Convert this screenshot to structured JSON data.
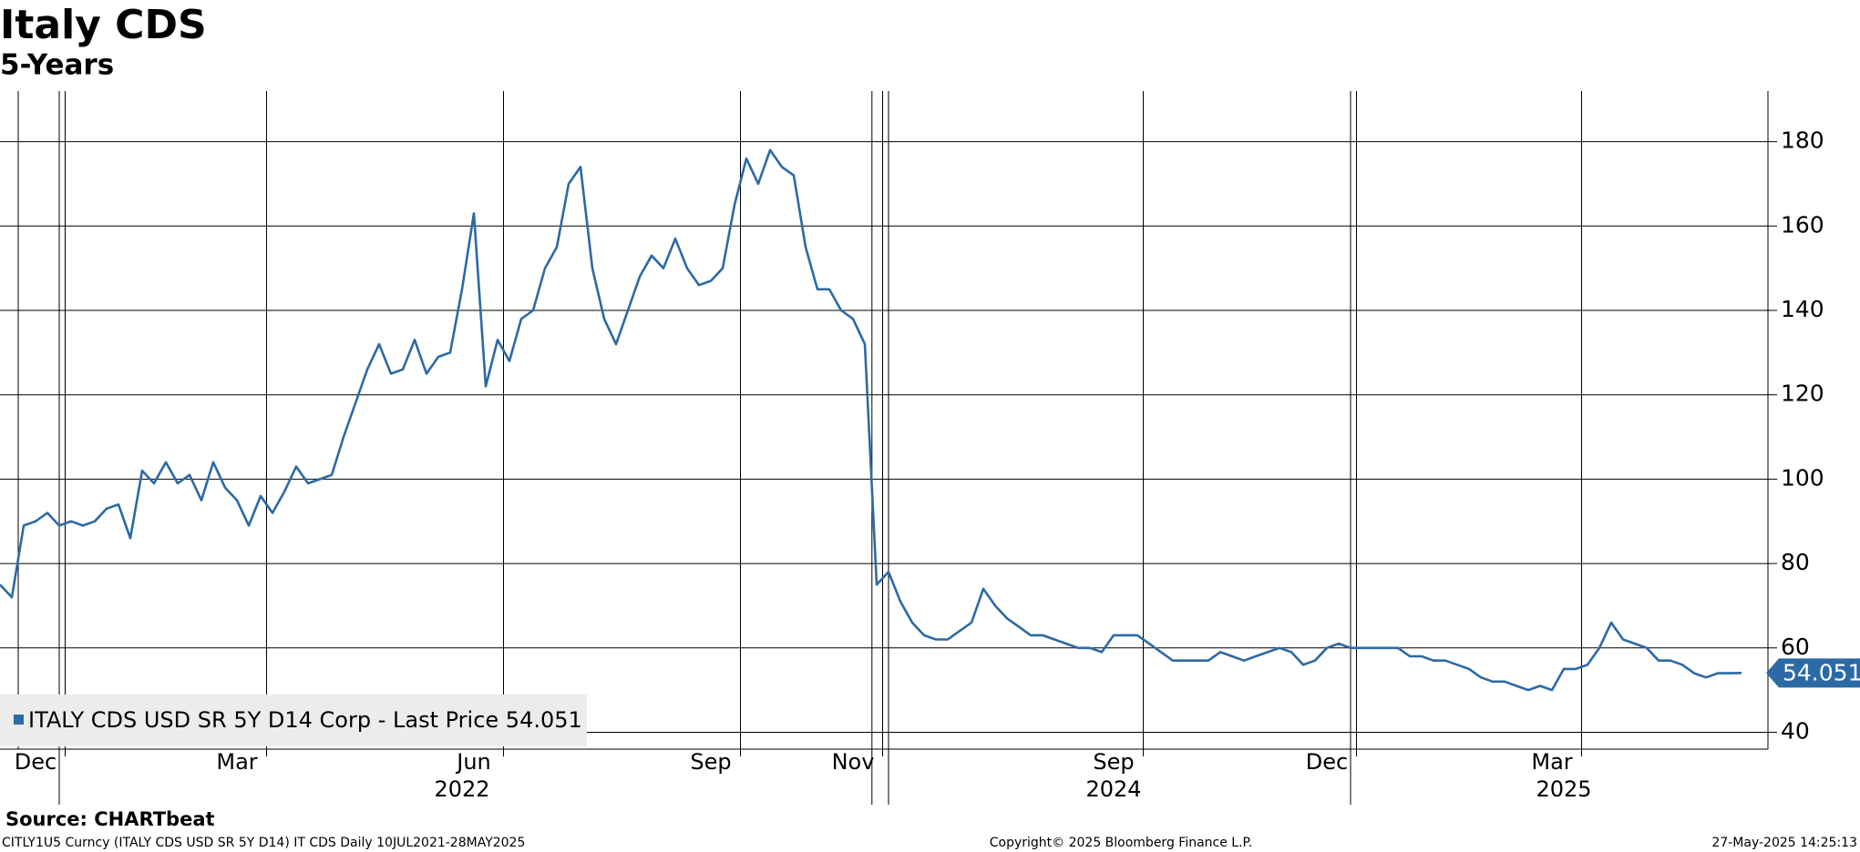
{
  "chart_data": {
    "type": "line",
    "title": "Italy CDS",
    "subtitle": "5-Years",
    "categories": [
      null,
      null,
      null,
      "Dec",
      null,
      null,
      null,
      null,
      null,
      null,
      null,
      null,
      null,
      null,
      null,
      null,
      null,
      null,
      null,
      null,
      "Mar",
      null,
      null,
      null,
      null,
      null,
      null,
      null,
      null,
      null,
      null,
      null,
      null,
      null,
      null,
      null,
      null,
      null,
      null,
      null,
      "Jun",
      null,
      null,
      null,
      null,
      null,
      null,
      null,
      null,
      null,
      null,
      null,
      null,
      null,
      null,
      null,
      null,
      null,
      null,
      null,
      "Sep",
      null,
      null,
      null,
      null,
      null,
      null,
      null,
      null,
      null,
      null,
      null,
      "Nov",
      null,
      null,
      null,
      null,
      null,
      null,
      null,
      null,
      null,
      null,
      null,
      null,
      null,
      null,
      null,
      null,
      null,
      null,
      null,
      null,
      null,
      "Sep",
      null,
      null,
      null,
      null,
      null,
      null,
      null,
      null,
      null,
      null,
      null,
      null,
      null,
      null,
      null,
      null,
      null,
      "Dec",
      null,
      null,
      null,
      null,
      null,
      null,
      null,
      null,
      null,
      null,
      null,
      null,
      null,
      null,
      null,
      null,
      null,
      null,
      "Mar",
      null,
      null,
      null,
      null,
      null,
      null,
      null,
      null,
      null,
      null,
      null,
      null,
      null,
      null,
      null,
      null
    ],
    "year_labels": [
      null,
      null,
      null,
      null,
      null,
      null,
      null,
      null,
      null,
      null,
      null,
      null,
      null,
      null,
      null,
      null,
      null,
      null,
      null,
      null,
      null,
      null,
      null,
      null,
      null,
      null,
      null,
      null,
      null,
      null,
      null,
      null,
      null,
      null,
      null,
      null,
      null,
      null,
      null,
      "2022",
      null,
      null,
      null,
      null,
      null,
      null,
      null,
      null,
      null,
      null,
      null,
      null,
      null,
      null,
      null,
      null,
      null,
      null,
      null,
      null,
      null,
      null,
      null,
      null,
      null,
      null,
      null,
      null,
      null,
      null,
      null,
      null,
      null,
      null,
      null,
      null,
      null,
      null,
      null,
      null,
      null,
      null,
      null,
      null,
      null,
      null,
      null,
      null,
      null,
      null,
      null,
      null,
      null,
      null,
      "2024",
      null,
      null,
      null,
      null,
      null,
      null,
      null,
      null,
      null,
      null,
      null,
      null,
      null,
      null,
      null,
      null,
      null,
      null,
      null,
      null,
      null,
      null,
      null,
      null,
      null,
      null,
      null,
      null,
      null,
      null,
      null,
      null,
      null,
      null,
      null,
      null,
      null,
      "2025",
      null,
      null,
      null,
      null,
      null,
      null,
      null,
      null,
      null,
      null,
      null,
      null,
      null,
      null,
      null
    ],
    "series": [
      {
        "name": "ITALY CDS USD SR 5Y D14 Corp - Last Price",
        "color": "#2c6aa5",
        "values": [
          75,
          72,
          89,
          90,
          92,
          89,
          90,
          89,
          90,
          93,
          94,
          86,
          102,
          99,
          104,
          99,
          101,
          95,
          104,
          98,
          95,
          89,
          96,
          92,
          97,
          103,
          99,
          100,
          101,
          110,
          118,
          126,
          132,
          125,
          126,
          133,
          125,
          129,
          130,
          145,
          163,
          122,
          133,
          128,
          138,
          140,
          150,
          155,
          170,
          174,
          150,
          138,
          132,
          140,
          148,
          153,
          150,
          157,
          150,
          146,
          147,
          150,
          165,
          176,
          170,
          178,
          174,
          172,
          155,
          145,
          145,
          140,
          138,
          132,
          75,
          78,
          71,
          66,
          63,
          62,
          62,
          64,
          66,
          74,
          70,
          67,
          65,
          63,
          63,
          62,
          61,
          60,
          60,
          59,
          63,
          63,
          63,
          61,
          59,
          57,
          57,
          57,
          57,
          59,
          58,
          57,
          58,
          59,
          60,
          59,
          56,
          57,
          60,
          61,
          60,
          60,
          60,
          60,
          60,
          58,
          58,
          57,
          57,
          56,
          55,
          53,
          52,
          52,
          51,
          50,
          51,
          50,
          55,
          55,
          56,
          60,
          66,
          62,
          61,
          60,
          57,
          57,
          56,
          54,
          53,
          54,
          54,
          54.051
        ]
      }
    ],
    "ylim": [
      36,
      192
    ],
    "yticks": [
      40,
      60,
      80,
      100,
      120,
      140,
      160,
      180
    ],
    "grid": true,
    "source": "Source: CHARTbeat",
    "footer_left": "CITLY1U5 Curncy (ITALY CDS USD SR 5Y D14) IT CDS  Daily 10JUL2021-28MAY2025",
    "footer_center": "Copyright© 2025 Bloomberg Finance L.P.",
    "footer_right": "27-May-2025 14:25:13"
  }
}
